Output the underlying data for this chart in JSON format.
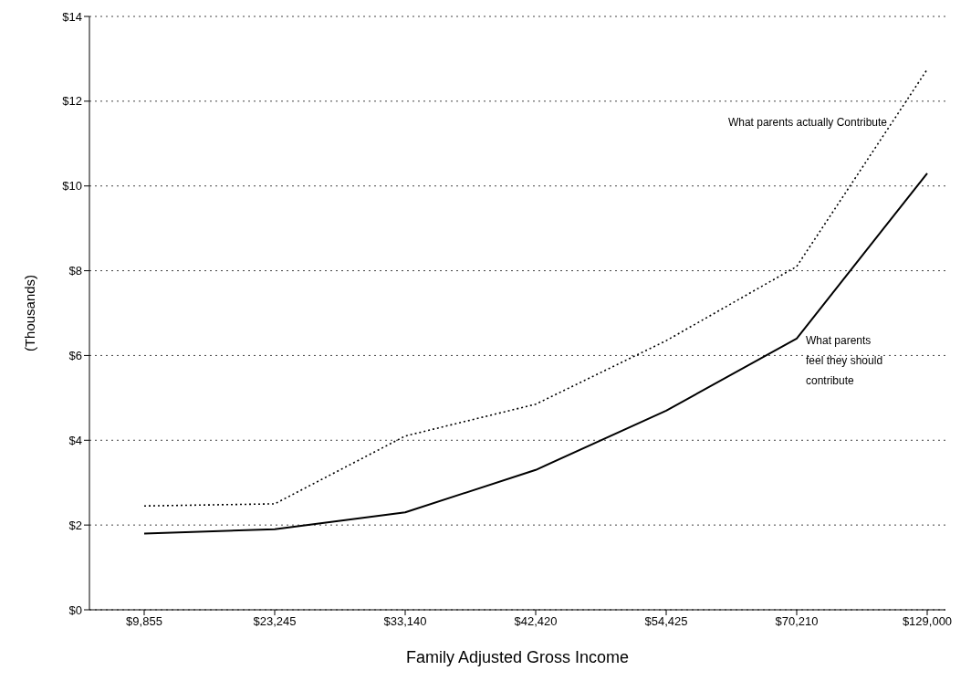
{
  "chart_data": {
    "type": "line",
    "xlabel": "Family Adjusted Gross Income",
    "ylabel": "(Thousands)",
    "categories": [
      "$9,855",
      "$23,245",
      "$33,140",
      "$42,420",
      "$54,425",
      "$70,210",
      "$129,000"
    ],
    "series": [
      {
        "name": "What parents actually Contribute",
        "color": "#000000",
        "line_style": "dotted",
        "values": [
          2.45,
          2.5,
          4.1,
          4.85,
          6.35,
          8.1,
          12.75
        ]
      },
      {
        "name": "What parents feel they should contribute",
        "color": "#000000",
        "line_style": "solid",
        "values": [
          1.8,
          1.9,
          2.3,
          3.3,
          4.7,
          6.4,
          10.3
        ]
      }
    ],
    "ylim": [
      0,
      14
    ],
    "yticks": [
      {
        "value": 0,
        "label": "$0"
      },
      {
        "value": 2,
        "label": "$2"
      },
      {
        "value": 4,
        "label": "$4"
      },
      {
        "value": 6,
        "label": "$6"
      },
      {
        "value": 8,
        "label": "$8"
      },
      {
        "value": 10,
        "label": "$10"
      },
      {
        "value": 12,
        "label": "$12"
      },
      {
        "value": 14,
        "label": "$14"
      }
    ],
    "grid": "y",
    "legend": false,
    "marker": "none"
  }
}
